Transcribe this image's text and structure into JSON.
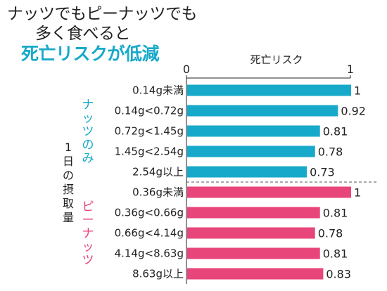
{
  "headline": {
    "line1": "ナッツでもピーナッツでも",
    "line2": "多く食べると",
    "line3": "死亡リスクが低減"
  },
  "chart_data": {
    "type": "bar",
    "orientation": "horizontal",
    "title": "死亡リスク",
    "ylabel": "1日の摂取量",
    "xlim": [
      0,
      1
    ],
    "x_ticks": [
      "0",
      "1"
    ],
    "grid": false,
    "groups": [
      {
        "name": "ナッツのみ",
        "color": "#17a9c9",
        "categories": [
          "0.14g未満",
          "0.14g<0.72g",
          "0.72g<1.45g",
          "1.45g<2.54g",
          "2.54g以上"
        ],
        "values": [
          1,
          0.92,
          0.81,
          0.78,
          0.73
        ],
        "labels": [
          "1",
          "0.92",
          "0.81",
          "0.78",
          "0.73"
        ]
      },
      {
        "name": "ピーナッツ",
        "color": "#e8457a",
        "categories": [
          "0.36g未満",
          "0.36g<0.66g",
          "0.66g<4.14g",
          "4.14g<8.63g",
          "8.63g以上"
        ],
        "values": [
          1,
          0.81,
          0.78,
          0.81,
          0.83
        ],
        "labels": [
          "1",
          "0.81",
          "0.78",
          "0.81",
          "0.83"
        ]
      }
    ]
  }
}
